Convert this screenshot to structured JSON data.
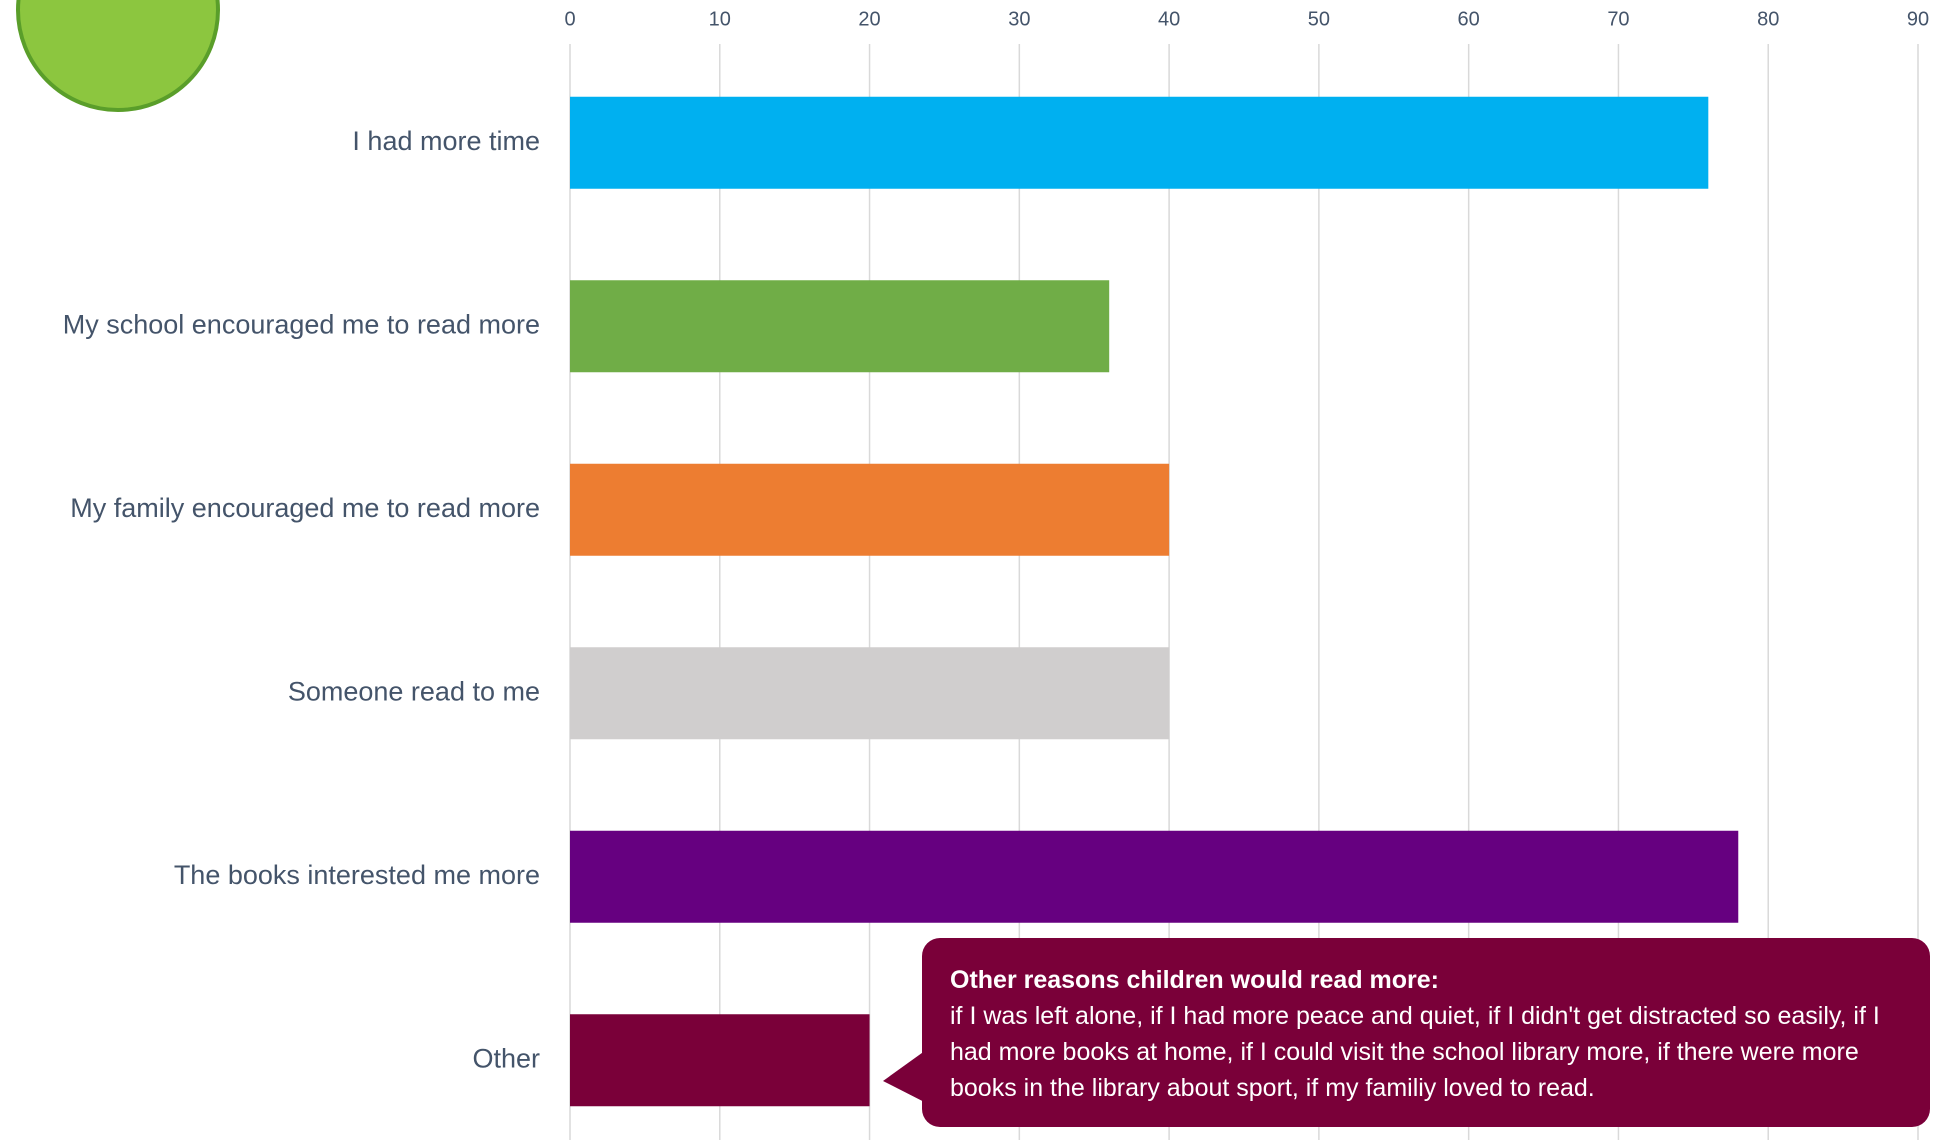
{
  "chart_data": {
    "type": "bar",
    "orientation": "horizontal",
    "categories": [
      "I had more time",
      "My school encouraged me to read more",
      "My family encouraged me to read more",
      "Someone read to me",
      "The books interested me more",
      "Other"
    ],
    "values": [
      76,
      36,
      40,
      40,
      78,
      20
    ],
    "colors": [
      "#00b0f0",
      "#70ad47",
      "#ed7d31",
      "#d0cece",
      "#660080",
      "#7a0039"
    ],
    "xlim": [
      0,
      90
    ],
    "xticks": [
      0,
      10,
      20,
      30,
      40,
      50,
      60,
      70,
      80,
      90
    ],
    "grid": true,
    "annotation": {
      "title": "Other reasons children would read more:",
      "text": "if I was left alone, if I had more peace and quiet, if I didn't get distracted so easily, if I had more books at home, if I could visit the school library more, if there were more books in the library about sport, if my familiy loved to read."
    }
  }
}
